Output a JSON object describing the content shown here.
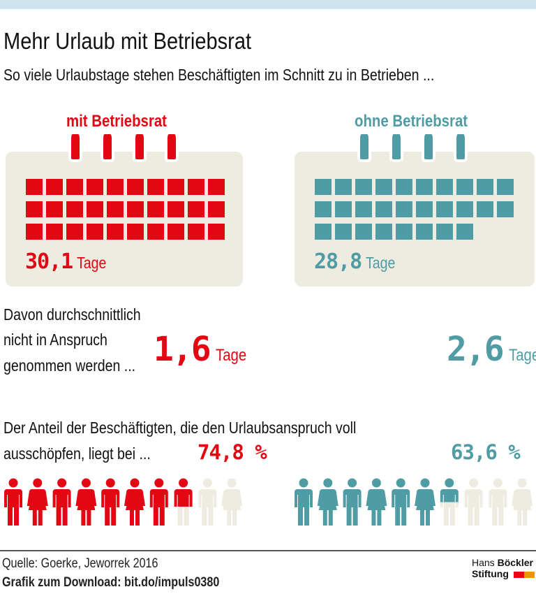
{
  "header": {
    "title": "Mehr Urlaub mit Betriebsrat",
    "subtitle": "So viele Urlaubstage stehen Beschäftigten im Schnitt zu in Betrieben ..."
  },
  "colors": {
    "red": "#e30613",
    "teal": "#4f9ca5",
    "beige": "#eeebe0",
    "empty": "#eeebe0",
    "topbar": "#cfe4ee"
  },
  "chart_data": [
    {
      "type": "bar",
      "title": "Urlaubstage",
      "categories": [
        "mit Betriebsrat",
        "ohne Betriebsrat"
      ],
      "values": [
        30.1,
        28.8
      ],
      "unit": "Tage",
      "labels": [
        "30,1",
        "28,8"
      ]
    },
    {
      "type": "bar",
      "title": "Davon durchschnittlich nicht in Anspruch genommen",
      "categories": [
        "mit Betriebsrat",
        "ohne Betriebsrat"
      ],
      "values": [
        1.6,
        2.6
      ],
      "unit": "Tage",
      "labels": [
        "1,6",
        "2,6"
      ]
    },
    {
      "type": "bar",
      "title": "Anteil der Beschäftigten, die den Urlaubsanspruch voll ausschöpfen",
      "categories": [
        "mit Betriebsrat",
        "ohne Betriebsrat"
      ],
      "values": [
        74.8,
        63.6
      ],
      "unit": "%",
      "labels": [
        "74,8 %",
        "63,6 %"
      ]
    }
  ],
  "groups": {
    "with": {
      "label": "mit Betriebsrat",
      "days_label": "30,1",
      "unused_label": "1,6",
      "share_label": "74,8 %"
    },
    "without": {
      "label": "ohne Betriebsrat",
      "days_label": "28,8",
      "unused_label": "2,6",
      "share_label": "63,6 %"
    }
  },
  "unit_days": "Tage",
  "texts": {
    "unused_line1": "Davon durchschnittlich",
    "unused_line2": "nicht in Anspruch",
    "unused_line3": "genommen werden ...",
    "share_line1": "Der Anteil der Beschäftigten, die den Urlaubsanspruch voll",
    "share_line2": "ausschöpfen, liegt bei ..."
  },
  "footer": {
    "source": "Quelle: Goerke, Jeworrek 2016",
    "download": "Grafik zum Download: bit.do/impuls0380",
    "logo_line1_a": "Hans ",
    "logo_line1_b": "Böckler",
    "logo_line2": "Stiftung"
  }
}
